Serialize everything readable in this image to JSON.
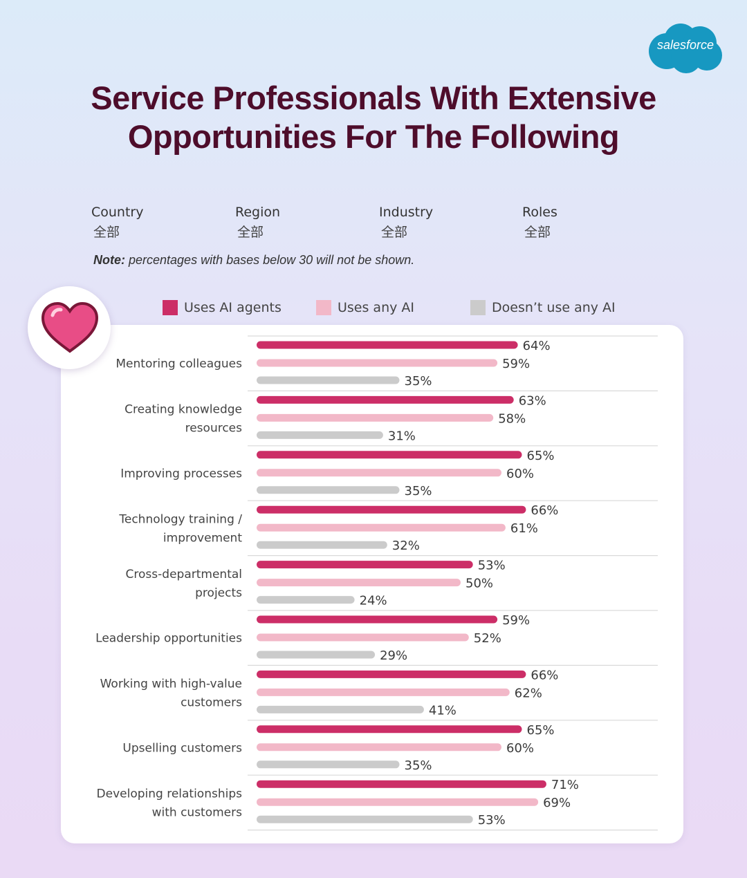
{
  "brand": {
    "logo_text": "salesforce",
    "logo_color": "#1798c1"
  },
  "title_lines": [
    "Service Professionals With Extensive",
    "Opportunities For The Following"
  ],
  "filters": [
    {
      "label": "Country",
      "value": "全部"
    },
    {
      "label": "Region",
      "value": "全部"
    },
    {
      "label": "Industry",
      "value": "全部"
    },
    {
      "label": "Roles",
      "value": "全部"
    }
  ],
  "note": {
    "prefix": "Note:",
    "text": " percentages with bases below 30 will not be shown."
  },
  "colors": {
    "agents": "#cc2e67",
    "any": "#f2b8c8",
    "none": "#cbcbcb",
    "title": "#4e0d2b",
    "heart": "#e84d86"
  },
  "chart_data": {
    "type": "bar",
    "orientation": "horizontal",
    "xlim": [
      0,
      100
    ],
    "value_suffix": "%",
    "legend_position": "top",
    "categories": [
      [
        "Mentoring colleagues"
      ],
      [
        "Creating knowledge",
        "resources"
      ],
      [
        "Improving processes"
      ],
      [
        "Technology training /",
        "improvement"
      ],
      [
        "Cross-departmental",
        "projects"
      ],
      [
        "Leadership opportunities"
      ],
      [
        "Working with high-value",
        "customers"
      ],
      [
        "Upselling customers"
      ],
      [
        "Developing relationships",
        "with customers"
      ]
    ],
    "series": [
      {
        "name": "Uses AI agents",
        "color": "#cc2e67",
        "values": [
          64,
          63,
          65,
          66,
          53,
          59,
          66,
          65,
          71
        ]
      },
      {
        "name": "Uses any AI",
        "color": "#f2b8c8",
        "values": [
          59,
          58,
          60,
          61,
          50,
          52,
          62,
          60,
          69
        ]
      },
      {
        "name": "Doesn’t use any AI",
        "color": "#cbcbcb",
        "values": [
          35,
          31,
          35,
          32,
          24,
          29,
          41,
          35,
          53
        ]
      }
    ]
  }
}
